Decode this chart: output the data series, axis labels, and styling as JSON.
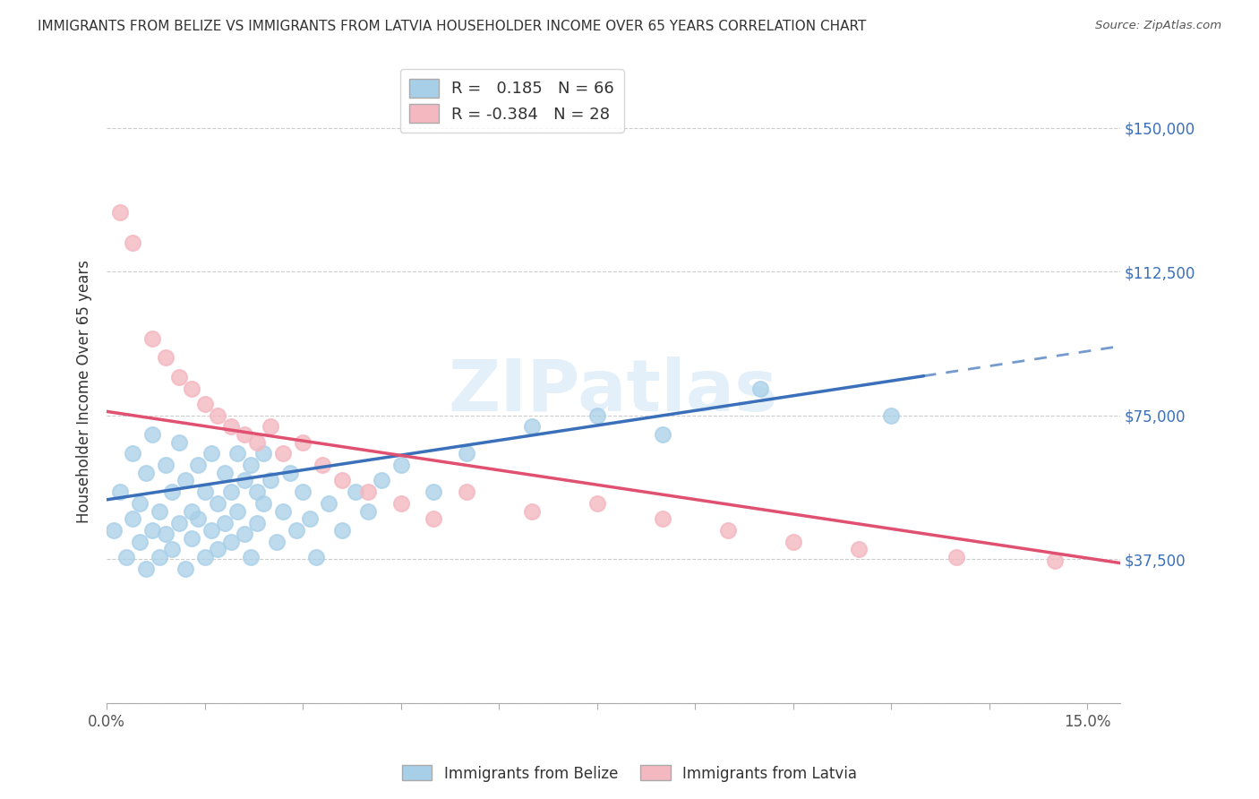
{
  "title": "IMMIGRANTS FROM BELIZE VS IMMIGRANTS FROM LATVIA HOUSEHOLDER INCOME OVER 65 YEARS CORRELATION CHART",
  "source": "Source: ZipAtlas.com",
  "ylabel": "Householder Income Over 65 years",
  "xlim": [
    0.0,
    0.155
  ],
  "ylim": [
    0,
    162500
  ],
  "ytick_positions": [
    0,
    37500,
    75000,
    112500,
    150000
  ],
  "ytick_labels": [
    "",
    "$37,500",
    "$75,000",
    "$112,500",
    "$150,000"
  ],
  "belize_R": 0.185,
  "belize_N": 66,
  "latvia_R": -0.384,
  "latvia_N": 28,
  "belize_color": "#a8cfe8",
  "latvia_color": "#f4b8c1",
  "belize_line_color": "#3a6fba",
  "latvia_line_color": "#e05070",
  "background_color": "#ffffff",
  "grid_color": "#cccccc",
  "belize_line_x0": 0.0,
  "belize_line_y0": 53000,
  "belize_line_x1": 0.155,
  "belize_line_y1": 93000,
  "latvia_line_x0": 0.0,
  "latvia_line_y0": 76000,
  "latvia_line_x1": 0.155,
  "latvia_line_y1": 36500,
  "belize_x": [
    0.001,
    0.002,
    0.003,
    0.004,
    0.004,
    0.005,
    0.005,
    0.006,
    0.006,
    0.007,
    0.007,
    0.008,
    0.008,
    0.009,
    0.009,
    0.01,
    0.01,
    0.011,
    0.011,
    0.012,
    0.012,
    0.013,
    0.013,
    0.014,
    0.014,
    0.015,
    0.015,
    0.016,
    0.016,
    0.017,
    0.017,
    0.018,
    0.018,
    0.019,
    0.019,
    0.02,
    0.02,
    0.021,
    0.021,
    0.022,
    0.022,
    0.023,
    0.023,
    0.024,
    0.024,
    0.025,
    0.026,
    0.027,
    0.028,
    0.029,
    0.03,
    0.031,
    0.032,
    0.034,
    0.036,
    0.038,
    0.04,
    0.042,
    0.045,
    0.05,
    0.055,
    0.065,
    0.075,
    0.085,
    0.1,
    0.12
  ],
  "belize_y": [
    45000,
    55000,
    38000,
    65000,
    48000,
    52000,
    42000,
    60000,
    35000,
    70000,
    45000,
    50000,
    38000,
    62000,
    44000,
    55000,
    40000,
    68000,
    47000,
    58000,
    35000,
    50000,
    43000,
    62000,
    48000,
    55000,
    38000,
    65000,
    45000,
    52000,
    40000,
    60000,
    47000,
    55000,
    42000,
    65000,
    50000,
    58000,
    44000,
    62000,
    38000,
    55000,
    47000,
    65000,
    52000,
    58000,
    42000,
    50000,
    60000,
    45000,
    55000,
    48000,
    38000,
    52000,
    45000,
    55000,
    50000,
    58000,
    62000,
    55000,
    65000,
    72000,
    75000,
    70000,
    82000,
    75000
  ],
  "latvia_x": [
    0.002,
    0.004,
    0.007,
    0.009,
    0.011,
    0.013,
    0.015,
    0.017,
    0.019,
    0.021,
    0.023,
    0.025,
    0.027,
    0.03,
    0.033,
    0.036,
    0.04,
    0.045,
    0.05,
    0.055,
    0.065,
    0.075,
    0.085,
    0.095,
    0.105,
    0.115,
    0.13,
    0.145
  ],
  "latvia_y": [
    128000,
    120000,
    95000,
    90000,
    85000,
    82000,
    78000,
    75000,
    72000,
    70000,
    68000,
    72000,
    65000,
    68000,
    62000,
    58000,
    55000,
    52000,
    48000,
    55000,
    50000,
    52000,
    48000,
    45000,
    42000,
    40000,
    38000,
    37000
  ]
}
